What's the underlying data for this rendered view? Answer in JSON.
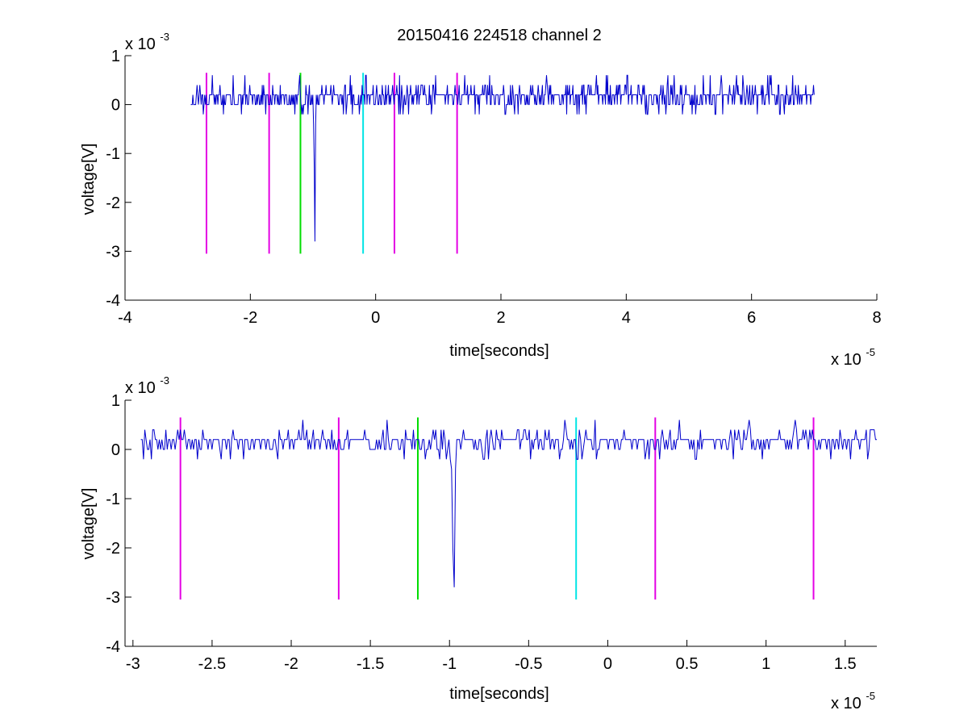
{
  "figure": {
    "title": "20150416 224518 channel 2"
  },
  "colors": {
    "signal": "#0000cc",
    "marker_magenta": "#e400e4",
    "marker_green": "#00dd00",
    "marker_cyan": "#00e5e5",
    "axis": "#000000"
  },
  "chart_data": [
    {
      "type": "line",
      "title": "20150416 224518 channel 2",
      "xlabel": "time[seconds]",
      "ylabel": "voltage[V]",
      "x_multiplier": "x 10",
      "x_exponent": "-5",
      "y_multiplier": "x 10",
      "y_exponent": "-3",
      "xlim": [
        -4,
        8
      ],
      "ylim": [
        -4,
        1
      ],
      "xticks": [
        -4,
        -2,
        0,
        2,
        4,
        6,
        8
      ],
      "xtick_labels": [
        "-4",
        "-2",
        "0",
        "2",
        "4",
        "6",
        "8"
      ],
      "yticks": [
        -4,
        -3,
        -2,
        -1,
        0,
        1
      ],
      "ytick_labels": [
        "-4",
        "-3",
        "-2",
        "-1",
        "0",
        "1"
      ],
      "grid": false,
      "signal": {
        "x_start": -2.95,
        "x_end": 7.0,
        "baseline": 0.1,
        "noise_levels": [
          0.0,
          0.2,
          0.4
        ],
        "spike": {
          "x": -0.98,
          "values": [
            -0.4,
            -1.3,
            -2.8
          ]
        }
      },
      "markers": [
        {
          "x": -2.7,
          "top": 0.65,
          "bottom": -3.05,
          "color": "magenta"
        },
        {
          "x": -1.7,
          "top": 0.65,
          "bottom": -3.05,
          "color": "magenta"
        },
        {
          "x": -1.2,
          "top": 0.65,
          "bottom": -3.05,
          "color": "green"
        },
        {
          "x": -0.2,
          "top": 0.65,
          "bottom": -3.05,
          "color": "cyan"
        },
        {
          "x": 0.3,
          "top": 0.65,
          "bottom": -3.05,
          "color": "magenta"
        },
        {
          "x": 1.3,
          "top": 0.65,
          "bottom": -3.05,
          "color": "magenta"
        }
      ]
    },
    {
      "type": "line",
      "title": "",
      "xlabel": "time[seconds]",
      "ylabel": "voltage[V]",
      "x_multiplier": "x 10",
      "x_exponent": "-5",
      "y_multiplier": "x 10",
      "y_exponent": "-3",
      "xlim": [
        -3.05,
        1.7
      ],
      "ylim": [
        -4,
        1
      ],
      "xticks": [
        -3,
        -2.5,
        -2,
        -1.5,
        -1,
        -0.5,
        0,
        0.5,
        1,
        1.5
      ],
      "xtick_labels": [
        "-3",
        "-2.5",
        "-2",
        "-1.5",
        "-1",
        "-0.5",
        "0",
        "0.5",
        "1",
        "1.5"
      ],
      "yticks": [
        -4,
        -3,
        -2,
        -1,
        0,
        1
      ],
      "ytick_labels": [
        "-4",
        "-3",
        "-2",
        "-1",
        "0",
        "1"
      ],
      "grid": false,
      "signal": {
        "x_start": -2.95,
        "x_end": 1.7,
        "baseline": 0.1,
        "noise_levels": [
          0.0,
          0.2,
          0.4
        ],
        "spike": {
          "x": -0.98,
          "values": [
            -0.4,
            -2.0,
            -2.8
          ]
        }
      },
      "markers": [
        {
          "x": -2.7,
          "top": 0.65,
          "bottom": -3.05,
          "color": "magenta"
        },
        {
          "x": -1.7,
          "top": 0.65,
          "bottom": -3.05,
          "color": "magenta"
        },
        {
          "x": -1.2,
          "top": 0.65,
          "bottom": -3.05,
          "color": "green"
        },
        {
          "x": -0.2,
          "top": 0.65,
          "bottom": -3.05,
          "color": "cyan"
        },
        {
          "x": 0.3,
          "top": 0.65,
          "bottom": -3.05,
          "color": "magenta"
        },
        {
          "x": 1.3,
          "top": 0.65,
          "bottom": -3.05,
          "color": "magenta"
        }
      ]
    }
  ]
}
